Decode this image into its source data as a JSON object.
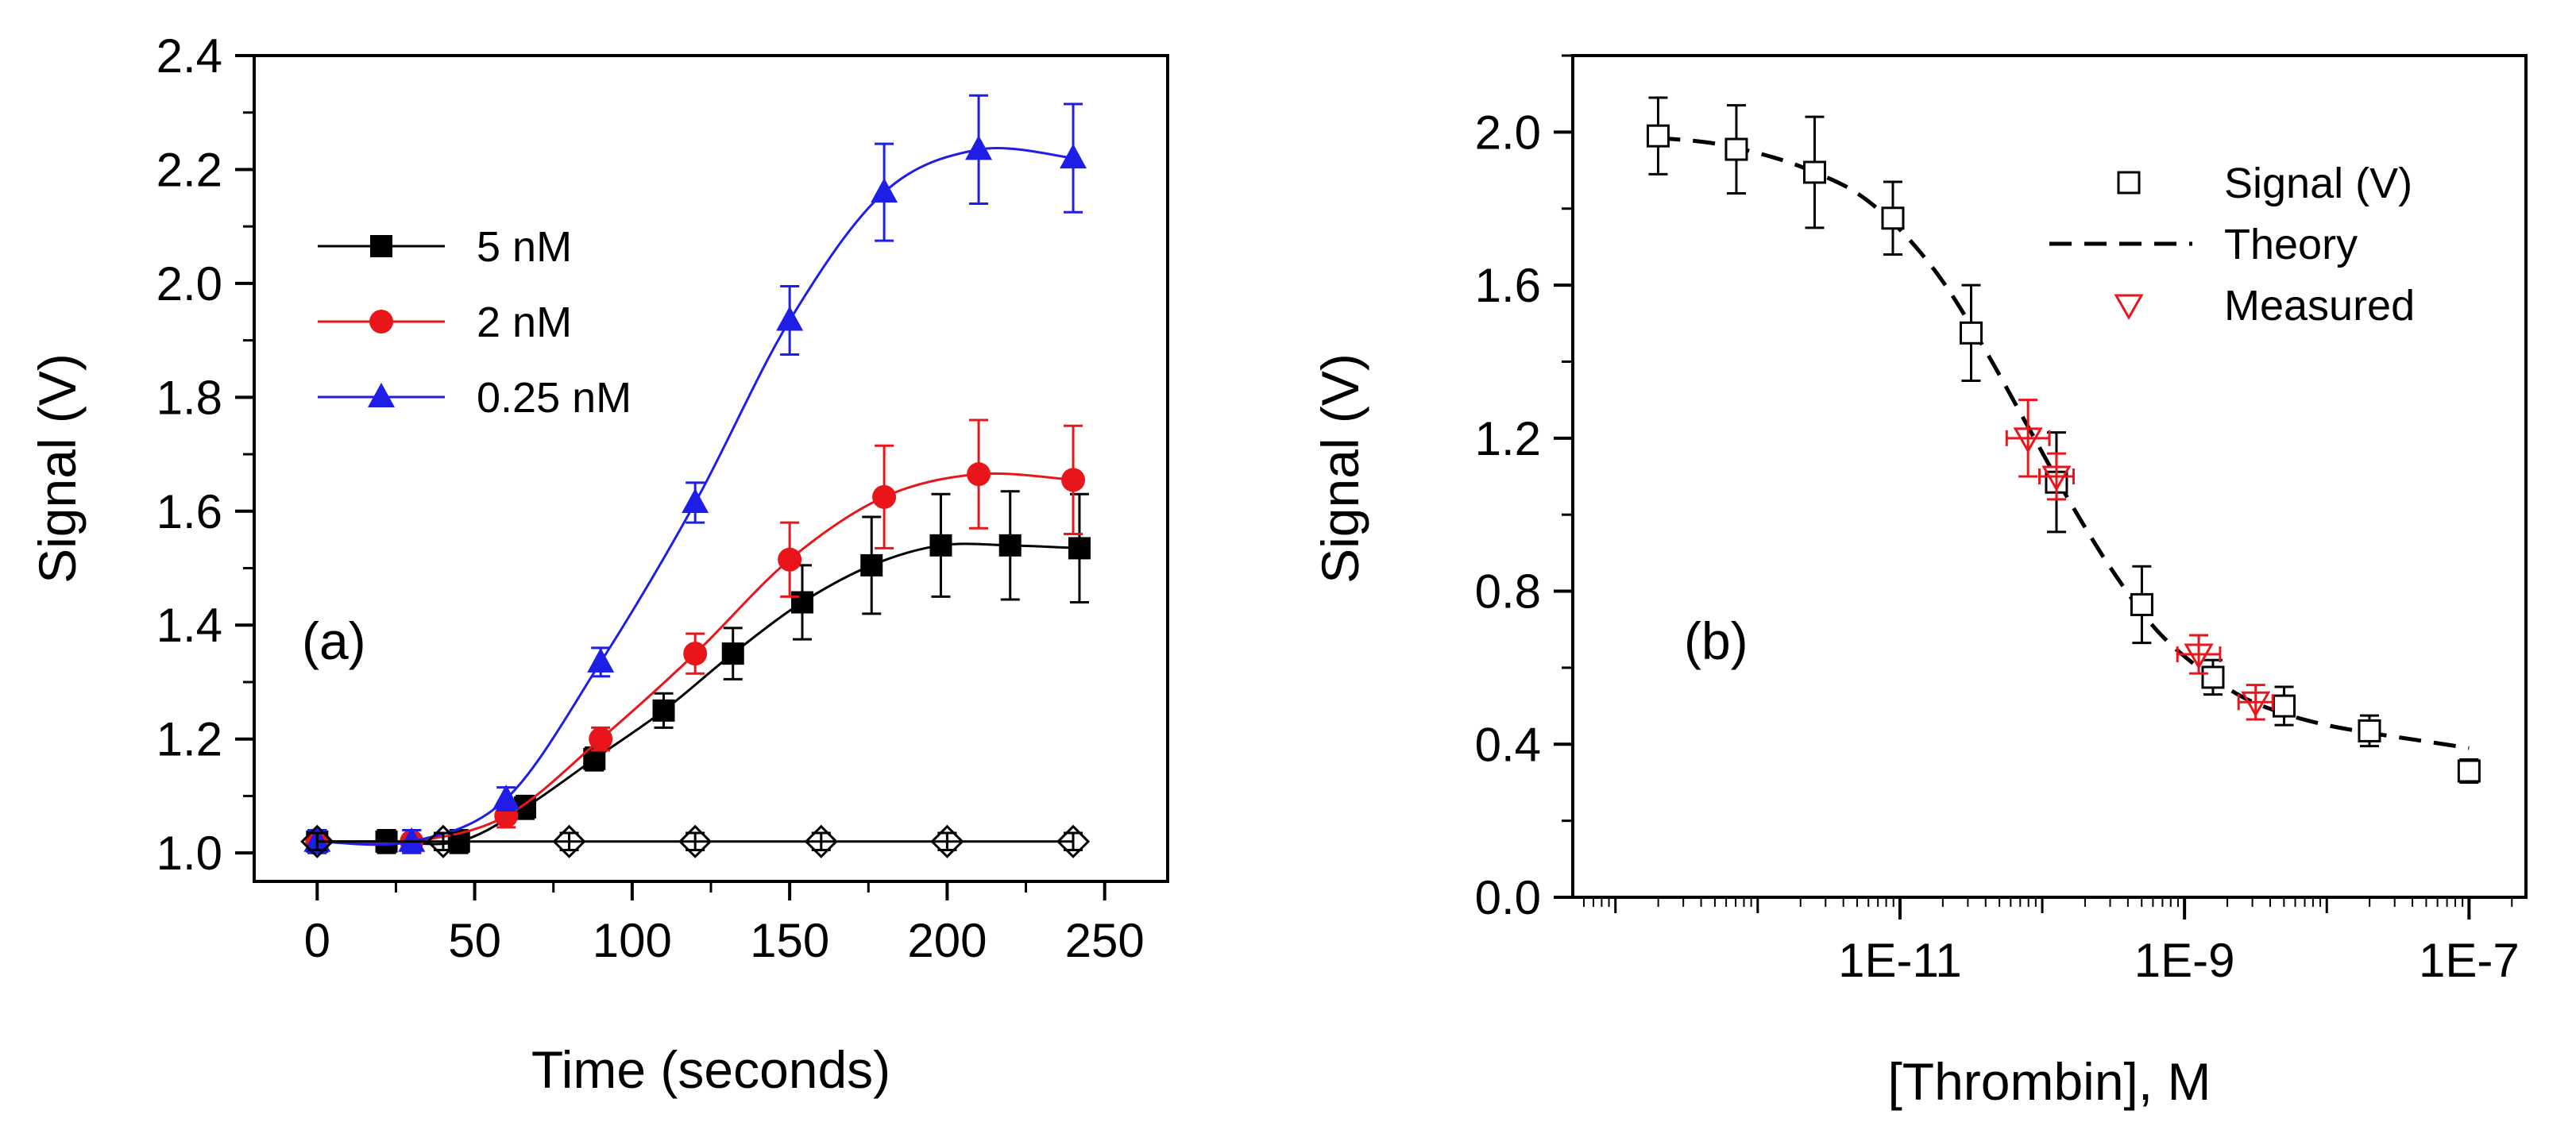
{
  "chart_data": [
    {
      "type": "line",
      "panel_label": "(a)",
      "xlabel": "Time (seconds)",
      "ylabel": "Signal (V)",
      "xlim": [
        -20,
        270
      ],
      "ylim": [
        0.95,
        2.4
      ],
      "xticks": [
        0,
        50,
        100,
        150,
        200,
        250
      ],
      "xtick_labels": [
        "0",
        "50",
        "100",
        "150",
        "200",
        "250"
      ],
      "yticks": [
        1.0,
        1.2,
        1.4,
        1.6,
        1.8,
        2.0,
        2.2,
        2.4
      ],
      "ytick_labels": [
        "1.0",
        "1.2",
        "1.4",
        "1.6",
        "1.8",
        "2.0",
        "2.2",
        "2.4"
      ],
      "legend_position": "upper-left",
      "series": [
        {
          "name": "5 nM",
          "color": "#000000",
          "marker": "square",
          "x": [
            0,
            22,
            45,
            66,
            88,
            110,
            132,
            154,
            176,
            198,
            220,
            242
          ],
          "y": [
            1.02,
            1.02,
            1.02,
            1.08,
            1.165,
            1.25,
            1.35,
            1.44,
            1.505,
            1.54,
            1.54,
            1.535
          ],
          "err": [
            0.02,
            0.02,
            0.02,
            0.02,
            0.02,
            0.03,
            0.045,
            0.065,
            0.085,
            0.09,
            0.095,
            0.095
          ]
        },
        {
          "name": "2 nM",
          "color": "#e8161b",
          "marker": "circle",
          "x": [
            0,
            30,
            60,
            90,
            120,
            150,
            180,
            210,
            240
          ],
          "y": [
            1.02,
            1.02,
            1.065,
            1.2,
            1.35,
            1.515,
            1.625,
            1.665,
            1.655
          ],
          "err": [
            0.02,
            0.02,
            0.02,
            0.02,
            0.035,
            0.065,
            0.09,
            0.095,
            0.095
          ]
        },
        {
          "name": "0.25 nM",
          "color": "#1e1ee6",
          "marker": "triangle",
          "x": [
            0,
            30,
            60,
            90,
            120,
            150,
            180,
            210,
            240
          ],
          "y": [
            1.02,
            1.02,
            1.095,
            1.335,
            1.615,
            1.935,
            2.16,
            2.235,
            2.22
          ],
          "err": [
            0.02,
            0.02,
            0.02,
            0.025,
            0.035,
            0.06,
            0.085,
            0.095,
            0.095
          ]
        },
        {
          "name": "baseline",
          "color": "#000000",
          "marker": "diamond",
          "show_in_legend": false,
          "x": [
            0,
            40,
            80,
            120,
            160,
            200,
            240
          ],
          "y": [
            1.02,
            1.02,
            1.02,
            1.02,
            1.02,
            1.02,
            1.02
          ],
          "err": [
            0.015,
            0.015,
            0.015,
            0.015,
            0.015,
            0.015,
            0.015
          ]
        }
      ]
    },
    {
      "type": "scatter",
      "panel_label": "(b)",
      "xlabel": "[Thrombin], M",
      "ylabel": "Signal (V)",
      "xscale": "log",
      "xlim_log10": [
        -13.3,
        -6.6
      ],
      "ylim": [
        0.0,
        2.2
      ],
      "xticks_log10": [
        -11,
        -9,
        -7
      ],
      "xtick_labels": [
        "1E-11",
        "1E-9",
        "1E-7"
      ],
      "yticks": [
        0.0,
        0.4,
        0.8,
        1.2,
        1.6,
        2.0
      ],
      "ytick_labels": [
        "0.0",
        "0.4",
        "0.8",
        "1.2",
        "1.6",
        "2.0"
      ],
      "legend_position": "upper-right",
      "series": [
        {
          "name": "Signal (V)",
          "color": "#000000",
          "marker": "open-square",
          "x_log10": [
            -12.7,
            -12.15,
            -11.6,
            -11.05,
            -10.5,
            -9.9,
            -9.3,
            -8.8,
            -8.3,
            -7.7,
            -7.0
          ],
          "y": [
            1.99,
            1.955,
            1.895,
            1.775,
            1.475,
            1.085,
            0.765,
            0.575,
            0.5,
            0.435,
            0.33
          ],
          "err": [
            0.1,
            0.115,
            0.145,
            0.095,
            0.125,
            0.13,
            0.1,
            0.045,
            0.05,
            0.04,
            0.03
          ]
        },
        {
          "name": "Theory",
          "color": "#000000",
          "style": "dashed",
          "x_log10": [
            -12.7,
            -12.3,
            -11.9,
            -11.6,
            -11.3,
            -11.0,
            -10.7,
            -10.4,
            -10.1,
            -9.8,
            -9.5,
            -9.2,
            -8.9,
            -8.6,
            -8.3,
            -8.0,
            -7.7,
            -7.35,
            -7.0
          ],
          "y": [
            1.985,
            1.97,
            1.935,
            1.895,
            1.84,
            1.745,
            1.61,
            1.43,
            1.23,
            1.03,
            0.85,
            0.7,
            0.6,
            0.525,
            0.48,
            0.45,
            0.43,
            0.41,
            0.39
          ]
        },
        {
          "name": "Measured",
          "color": "#e8161b",
          "marker": "open-triangle-down",
          "x_log10": [
            -10.1,
            -9.9,
            -8.9,
            -8.5
          ],
          "y": [
            1.2,
            1.1,
            0.635,
            0.51
          ],
          "err": [
            0.1,
            0.06,
            0.05,
            0.045
          ],
          "xerr_log10": [
            0.15,
            0.12,
            0.15,
            0.12
          ]
        }
      ]
    }
  ]
}
